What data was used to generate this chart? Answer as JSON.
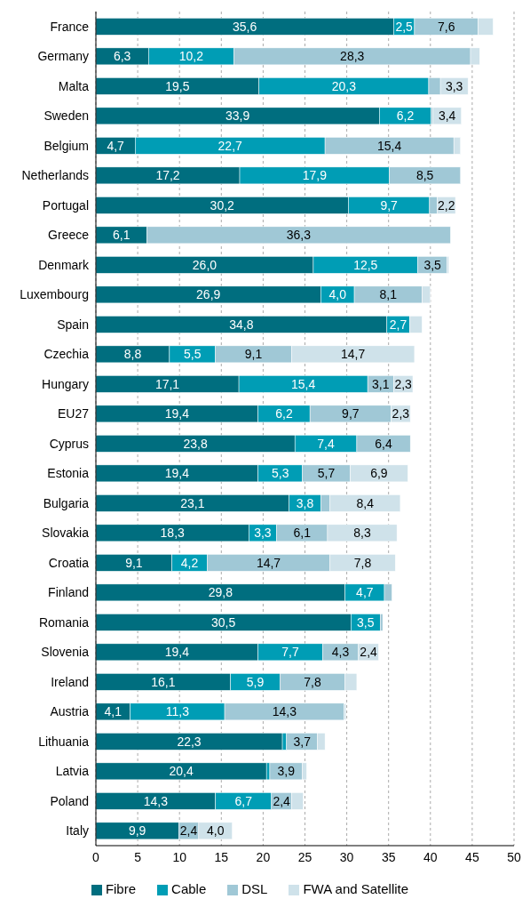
{
  "chart_data": {
    "type": "bar",
    "orientation": "horizontal",
    "stacked": true,
    "categories": [
      "France",
      "Germany",
      "Malta",
      "Sweden",
      "Belgium",
      "Netherlands",
      "Portugal",
      "Greece",
      "Denmark",
      "Luxembourg",
      "Spain",
      "Czechia",
      "Hungary",
      "EU27",
      "Cyprus",
      "Estonia",
      "Bulgaria",
      "Slovakia",
      "Croatia",
      "Finland",
      "Romania",
      "Slovenia",
      "Ireland",
      "Austria",
      "Lithuania",
      "Latvia",
      "Poland",
      "Italy"
    ],
    "series": [
      {
        "name": "Fibre",
        "color": "#006e7f",
        "values": [
          35.6,
          6.3,
          19.5,
          33.9,
          4.7,
          17.2,
          30.2,
          6.1,
          26.0,
          26.9,
          34.8,
          8.8,
          17.1,
          19.4,
          23.8,
          19.4,
          23.1,
          18.3,
          9.1,
          29.8,
          30.5,
          19.4,
          16.1,
          4.1,
          22.3,
          20.4,
          14.3,
          9.9
        ],
        "value_labels": [
          "35,6",
          "6,3",
          "19,5",
          "33,9",
          "4,7",
          "17,2",
          "30,2",
          "6,1",
          "26,0",
          "26,9",
          "34,8",
          "8,8",
          "17,1",
          "19,4",
          "23,8",
          "19,4",
          "23,1",
          "18,3",
          "9,1",
          "29,8",
          "30,5",
          "19,4",
          "16,1",
          "4,1",
          "22,3",
          "20,4",
          "14,3",
          "9,9"
        ]
      },
      {
        "name": "Cable",
        "color": "#009db5",
        "values": [
          2.5,
          10.2,
          20.3,
          6.2,
          22.7,
          17.9,
          9.7,
          null,
          12.5,
          4.0,
          2.7,
          5.5,
          15.4,
          6.2,
          7.4,
          5.3,
          3.8,
          3.3,
          4.2,
          4.7,
          3.5,
          7.7,
          5.9,
          11.3,
          0.5,
          0.4,
          6.7,
          null
        ],
        "value_labels": [
          "2,5",
          "10,2",
          "20,3",
          "6,2",
          "22,7",
          "17,9",
          "9,7",
          null,
          "12,5",
          "4,0",
          "2,7",
          "5,5",
          "15,4",
          "6,2",
          "7,4",
          "5,3",
          "3,8",
          "3,3",
          "4,2",
          "4,7",
          "3,5",
          "7,7",
          "5,9",
          "11,3",
          null,
          null,
          "6,7",
          null
        ]
      },
      {
        "name": "DSL",
        "color": "#a0c8d6",
        "values": [
          7.6,
          28.3,
          1.4,
          0.2,
          15.4,
          8.5,
          0.9,
          36.3,
          3.5,
          8.1,
          null,
          9.1,
          3.1,
          9.7,
          6.4,
          5.7,
          1.1,
          6.1,
          14.7,
          0.9,
          0.3,
          4.3,
          7.8,
          14.3,
          3.7,
          3.9,
          2.4,
          2.4
        ],
        "value_labels": [
          "7,6",
          "28,3",
          null,
          null,
          "15,4",
          "8,5",
          null,
          "36,3",
          "3,5",
          "8,1",
          null,
          "9,1",
          "3,1",
          "9,7",
          "6,4",
          "5,7",
          null,
          "6,1",
          "14,7",
          null,
          null,
          "4,3",
          "7,8",
          "14,3",
          "3,7",
          "3,9",
          "2,4",
          "2,4"
        ]
      },
      {
        "name": "FWA and Satellite",
        "color": "#cfe2ea",
        "values": [
          1.8,
          1.1,
          3.3,
          3.4,
          0.8,
          null,
          2.2,
          null,
          0.2,
          1.0,
          1.5,
          14.7,
          2.3,
          2.3,
          null,
          6.9,
          8.4,
          8.3,
          7.8,
          null,
          null,
          2.4,
          1.4,
          0.2,
          0.9,
          0.5,
          1.4,
          4.0
        ],
        "value_labels": [
          null,
          null,
          "3,3",
          "3,4",
          null,
          null,
          "2,2",
          null,
          null,
          null,
          null,
          "14,7",
          "2,3",
          "2,3",
          null,
          "6,9",
          "8,4",
          "8,3",
          "7,8",
          null,
          null,
          "2,4",
          null,
          null,
          null,
          null,
          null,
          "4,0"
        ]
      }
    ],
    "xlim": [
      0,
      50
    ],
    "xticks": [
      0,
      5,
      10,
      15,
      20,
      25,
      30,
      35,
      40,
      45,
      50
    ],
    "grid": "x",
    "legend": "bottom"
  }
}
